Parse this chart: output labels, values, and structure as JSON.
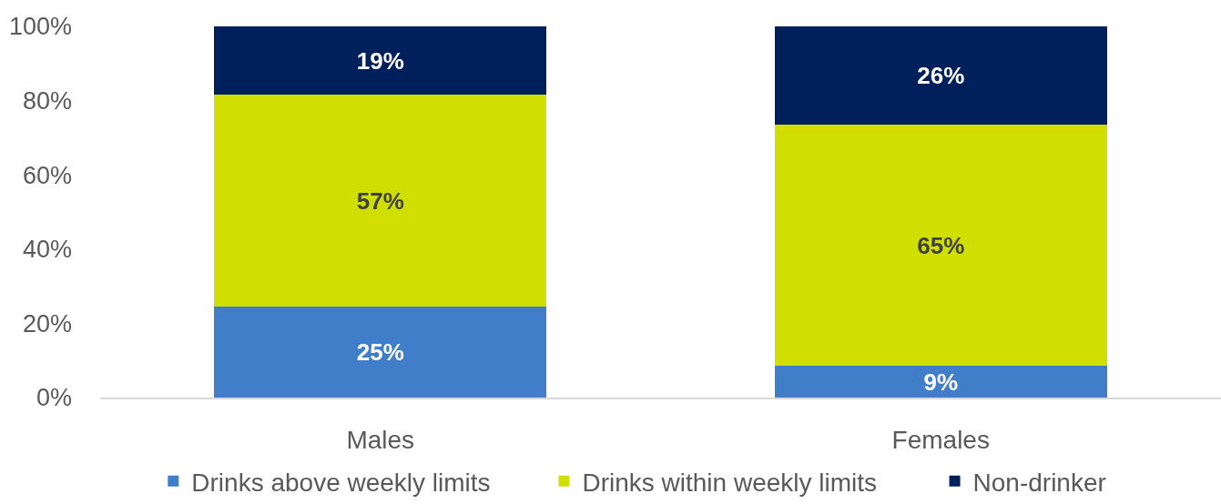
{
  "chart_data": {
    "type": "bar",
    "stacked": true,
    "categories": [
      "Males",
      "Females"
    ],
    "series": [
      {
        "name": "Drinks above weekly limits",
        "color": "#407ec9",
        "values": [
          24.5,
          8.5
        ],
        "value_labels": [
          "25%",
          "9%"
        ]
      },
      {
        "name": "Drinks within weekly limits",
        "color": "#d0df00",
        "values": [
          57,
          65.1
        ],
        "value_labels": [
          "57%",
          "65%"
        ]
      },
      {
        "name": "Non-drinker",
        "color": "#00205b",
        "values": [
          18.5,
          26.4
        ],
        "value_labels": [
          "19%",
          "26%"
        ]
      }
    ],
    "ylim": [
      0,
      100
    ],
    "yticks": [
      {
        "value": 0,
        "label": "0%"
      },
      {
        "value": 20,
        "label": "20%"
      },
      {
        "value": 40,
        "label": "40%"
      },
      {
        "value": 60,
        "label": "60%"
      },
      {
        "value": 80,
        "label": "80%"
      },
      {
        "value": 100,
        "label": "100%"
      }
    ],
    "grid": false,
    "legend": "bottom"
  }
}
